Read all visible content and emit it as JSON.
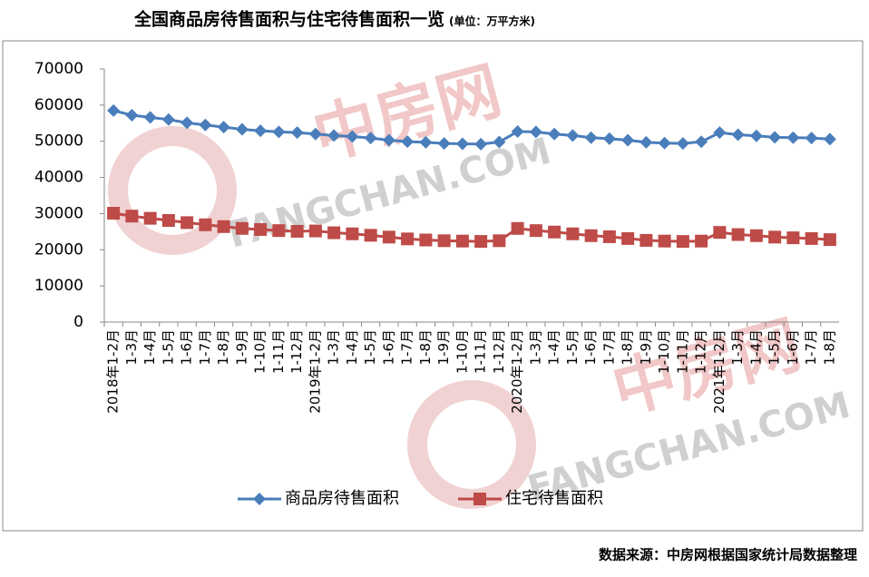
{
  "chart_data": {
    "type": "line",
    "title": "全国商品房待售面积与住宅待售面积一览",
    "subtitle": "(单位：万平方米)",
    "source": "数据来源：中房网根据国家统计局数据整理",
    "watermark": [
      "中房网",
      "FANGCHAN.COM"
    ],
    "categories": [
      "2018年1-2月",
      "1-3月",
      "1-4月",
      "1-5月",
      "1-6月",
      "1-7月",
      "1-8月",
      "1-9月",
      "1-10月",
      "1-11月",
      "1-12月",
      "2019年1-2月",
      "1-3月",
      "1-4月",
      "1-5月",
      "1-6月",
      "1-7月",
      "1-8月",
      "1-9月",
      "1-10月",
      "1-11月",
      "1-12月",
      "2020年1-2月",
      "1-3月",
      "1-4月",
      "1-5月",
      "1-6月",
      "1-7月",
      "1-8月",
      "1-9月",
      "1-10月",
      "1-11月",
      "1-12月",
      "2021年1-2月",
      "1-3月",
      "1-4月",
      "1-5月",
      "1-6月",
      "1-7月",
      "1-8月"
    ],
    "series": [
      {
        "name": "商品房待售面积",
        "color": "#4a7ebb",
        "marker": "diamond",
        "values": [
          58500,
          57200,
          56600,
          56000,
          55100,
          54500,
          53900,
          53300,
          52900,
          52600,
          52400,
          52000,
          51600,
          51300,
          50900,
          50300,
          49900,
          49700,
          49400,
          49300,
          49200,
          49800,
          52700,
          52600,
          52000,
          51600,
          51000,
          50700,
          50300,
          49700,
          49500,
          49400,
          49850,
          52400,
          51800,
          51500,
          51100,
          51000,
          50900,
          50600
        ]
      },
      {
        "name": "住宅待售面积",
        "color": "#be4b48",
        "marker": "square",
        "values": [
          30100,
          29300,
          28700,
          28100,
          27500,
          26900,
          26400,
          25900,
          25600,
          25300,
          25100,
          25200,
          24700,
          24400,
          24000,
          23500,
          23000,
          22700,
          22500,
          22400,
          22300,
          22500,
          25900,
          25300,
          24900,
          24400,
          23900,
          23600,
          23100,
          22600,
          22400,
          22300,
          22400,
          24800,
          24200,
          23900,
          23500,
          23300,
          23100,
          22800
        ]
      }
    ],
    "ylim": [
      0,
      70000
    ],
    "yticks": [
      0,
      10000,
      20000,
      30000,
      40000,
      50000,
      60000,
      70000
    ]
  }
}
